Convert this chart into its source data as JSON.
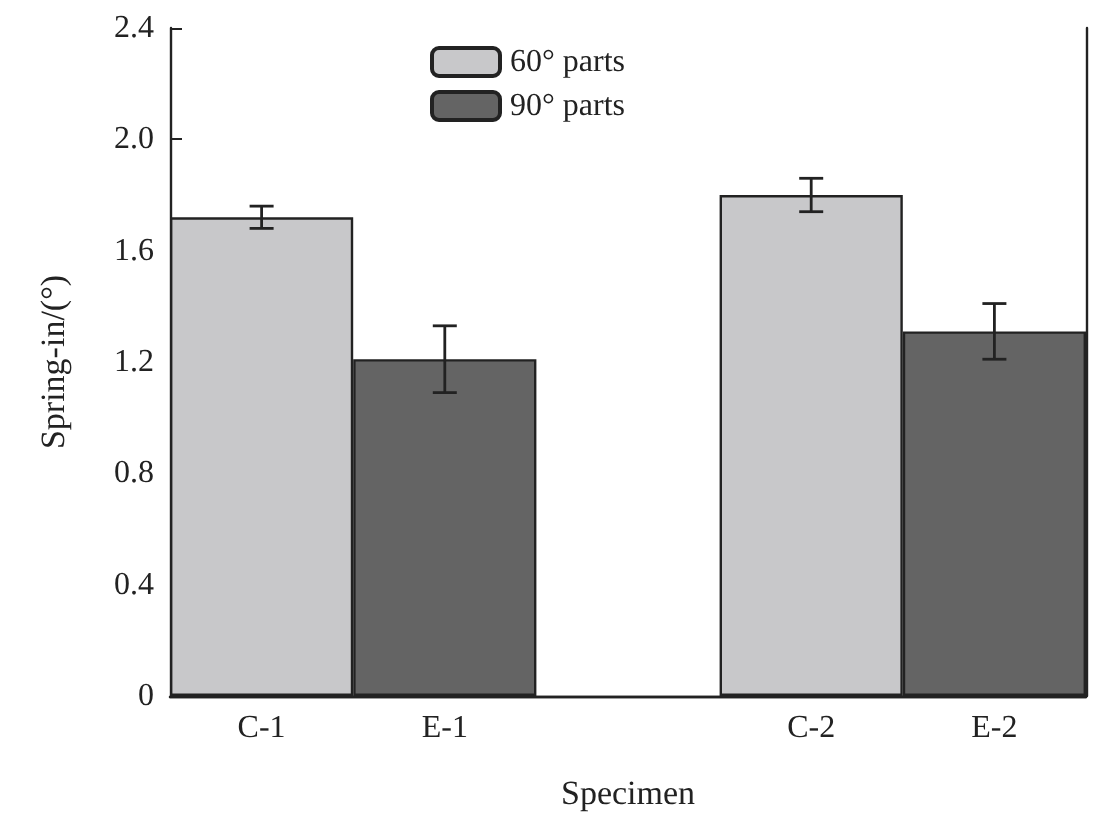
{
  "chart_data": {
    "type": "bar",
    "xlabel": "Specimen",
    "ylabel": "Spring-in/(°)",
    "categories": [
      "C-1",
      "E-1",
      null,
      "C-2",
      "E-2"
    ],
    "series": [
      {
        "name": "60° parts",
        "color": "#c8c8ca",
        "values": [
          1.72,
          null,
          null,
          1.8,
          null
        ],
        "errors": [
          0.04,
          null,
          null,
          0.06,
          null
        ]
      },
      {
        "name": "90° parts",
        "color": "#646464",
        "values": [
          null,
          1.21,
          null,
          null,
          1.31
        ],
        "errors": [
          null,
          0.12,
          null,
          null,
          0.1
        ]
      }
    ],
    "stacked": true,
    "ylim": [
      0,
      2.4
    ],
    "yticks": [
      0,
      0.4,
      0.8,
      1.2,
      1.6,
      {
        "value": 2,
        "label": "2.0"
      },
      2.4
    ],
    "grid": false,
    "legend": "top"
  }
}
